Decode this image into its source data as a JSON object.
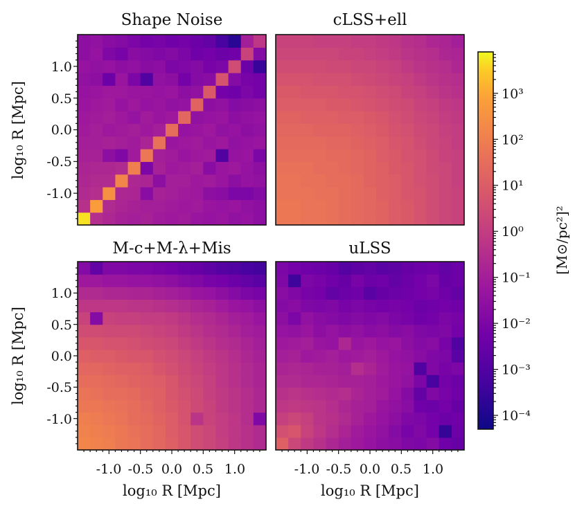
{
  "chart_data": {
    "type": "heatmap",
    "grid_size": 15,
    "axis_range": [
      -1.5,
      1.5
    ],
    "color_scale": {
      "label": "[M⊙/pc²]²",
      "log10_range": [
        -4.3,
        3.9
      ],
      "colormap": "plasma",
      "tick_labels": [
        "10⁻⁴",
        "10⁻³",
        "10⁻²",
        "10⁻¹",
        "10⁰",
        "10¹",
        "10²",
        "10³"
      ],
      "tick_log_values": [
        -4,
        -3,
        -2,
        -1,
        0,
        1,
        2,
        3
      ]
    },
    "x_tick_labels": [
      "-1.0",
      "-0.5",
      "0.0",
      "0.5",
      "1.0"
    ],
    "x_tick_values": [
      -1.0,
      -0.5,
      0.0,
      0.5,
      1.0
    ],
    "y_tick_labels": [
      "-1.0",
      "-0.5",
      "0.0",
      "0.5",
      "1.0"
    ],
    "y_tick_values": [
      -1.0,
      -0.5,
      0.0,
      0.5,
      1.0
    ],
    "xlabel": "log₁₀ R [Mpc]",
    "ylabel": "log₁₀ R [Mpc]",
    "panels": [
      {
        "title": "Shape Noise",
        "log10_values": [
          [
            3.7,
            -0.5,
            -0.7,
            -0.9,
            -1.0,
            -0.9,
            -1.1,
            -1.2,
            -1.1,
            -1.3,
            -1.4,
            -1.3,
            -1.5,
            -1.4,
            -1.6
          ],
          [
            -0.4,
            2.8,
            -0.6,
            -0.8,
            -0.9,
            -1.0,
            -1.0,
            -1.1,
            -1.2,
            -1.1,
            -1.3,
            -1.4,
            -1.3,
            -1.5,
            -1.6
          ],
          [
            -0.6,
            -0.5,
            2.5,
            -0.7,
            -0.8,
            -1.7,
            -0.9,
            -1.0,
            -1.1,
            -1.2,
            -1.6,
            -1.7,
            -2.0,
            -2.0,
            -1.8
          ],
          [
            -0.7,
            -0.6,
            -0.6,
            2.2,
            -0.7,
            -0.8,
            -1.6,
            -1.0,
            -1.0,
            -1.2,
            -1.1,
            -1.3,
            -1.6,
            -1.4,
            -1.5
          ],
          [
            -0.8,
            -0.7,
            -0.7,
            -0.6,
            2.0,
            -2.0,
            -0.9,
            -1.2,
            -1.1,
            -1.0,
            -1.7,
            -1.3,
            -1.2,
            -1.4,
            -1.6
          ],
          [
            -0.9,
            -0.9,
            -1.6,
            -1.9,
            -1.1,
            1.8,
            -1.0,
            -1.1,
            -1.3,
            -1.2,
            -1.1,
            -3.0,
            -1.4,
            -1.3,
            -2.0
          ],
          [
            -1.0,
            -1.0,
            -0.9,
            -1.0,
            -1.1,
            -0.8,
            1.6,
            -1.3,
            -1.2,
            -1.1,
            -1.3,
            -1.2,
            -1.5,
            -1.4,
            -1.3
          ],
          [
            -1.1,
            -1.0,
            -1.2,
            -1.1,
            -1.0,
            -1.2,
            -1.0,
            1.5,
            -1.4,
            -1.3,
            -1.2,
            -1.5,
            -1.4,
            -1.6,
            -1.5
          ],
          [
            -1.2,
            -1.1,
            -1.0,
            -1.2,
            -1.4,
            -1.1,
            -1.3,
            -1.2,
            1.3,
            -1.5,
            -1.4,
            -1.3,
            -1.6,
            -1.5,
            -1.4
          ],
          [
            -1.3,
            -1.2,
            -1.1,
            -1.4,
            -1.2,
            -1.4,
            -1.3,
            -1.5,
            -1.4,
            1.2,
            -1.6,
            -1.5,
            -1.8,
            -1.7,
            -1.6
          ],
          [
            -1.4,
            -1.3,
            -1.2,
            -1.2,
            -1.3,
            -1.3,
            -1.4,
            -1.3,
            -1.6,
            -1.5,
            0.9,
            -2.2,
            -2.3,
            -2.0,
            -2.2
          ],
          [
            -1.5,
            -1.6,
            -2.4,
            -1.3,
            -2.0,
            -3.0,
            -1.5,
            -1.6,
            -2.2,
            -1.8,
            -1.7,
            0.7,
            -1.8,
            -2.1,
            -2.2
          ],
          [
            -1.4,
            -1.5,
            -1.4,
            -1.6,
            -1.5,
            -1.7,
            -1.6,
            -2.0,
            -1.9,
            -1.8,
            -2.1,
            -2.0,
            0.5,
            -2.4,
            -3.5
          ],
          [
            -1.6,
            -1.4,
            -1.9,
            -2.1,
            -1.7,
            -1.8,
            -1.9,
            -1.8,
            -2.0,
            -2.3,
            -2.2,
            -2.4,
            -2.3,
            0.2,
            -1.8
          ],
          [
            -1.6,
            -1.5,
            -1.7,
            -1.8,
            -2.0,
            -2.2,
            -2.1,
            -2.3,
            -2.2,
            -2.4,
            -2.6,
            -3.2,
            -3.8,
            -1.0,
            -0.2
          ]
        ]
      },
      {
        "title": "cLSS+ell",
        "log10_values": [
          [
            1.8,
            1.8,
            1.7,
            1.7,
            1.6,
            1.5,
            1.4,
            1.3,
            1.2,
            1.0,
            0.9,
            0.7,
            0.5,
            0.3,
            0.2
          ],
          [
            1.8,
            1.8,
            1.7,
            1.7,
            1.6,
            1.5,
            1.4,
            1.3,
            1.2,
            1.0,
            0.9,
            0.7,
            0.5,
            0.3,
            0.2
          ],
          [
            1.7,
            1.7,
            1.7,
            1.6,
            1.6,
            1.5,
            1.4,
            1.3,
            1.1,
            1.0,
            0.8,
            0.7,
            0.5,
            0.3,
            0.2
          ],
          [
            1.7,
            1.7,
            1.6,
            1.6,
            1.5,
            1.5,
            1.4,
            1.2,
            1.1,
            1.0,
            0.8,
            0.6,
            0.5,
            0.3,
            0.1
          ],
          [
            1.6,
            1.6,
            1.6,
            1.5,
            1.5,
            1.4,
            1.3,
            1.2,
            1.1,
            0.9,
            0.8,
            0.6,
            0.4,
            0.3,
            0.1
          ],
          [
            1.5,
            1.5,
            1.5,
            1.5,
            1.4,
            1.4,
            1.3,
            1.2,
            1.0,
            0.9,
            0.7,
            0.6,
            0.4,
            0.2,
            0.1
          ],
          [
            1.4,
            1.4,
            1.4,
            1.4,
            1.3,
            1.3,
            1.2,
            1.1,
            1.0,
            0.8,
            0.7,
            0.5,
            0.3,
            0.2,
            0.0
          ],
          [
            1.3,
            1.3,
            1.3,
            1.2,
            1.2,
            1.2,
            1.1,
            1.0,
            0.9,
            0.7,
            0.6,
            0.4,
            0.3,
            0.1,
            0.0
          ],
          [
            1.2,
            1.2,
            1.1,
            1.1,
            1.1,
            1.0,
            1.0,
            0.9,
            0.8,
            0.6,
            0.5,
            0.3,
            0.2,
            0.0,
            -0.1
          ],
          [
            1.0,
            1.0,
            1.0,
            1.0,
            0.9,
            0.9,
            0.8,
            0.7,
            0.6,
            0.5,
            0.4,
            0.2,
            0.1,
            -0.1,
            -0.2
          ],
          [
            0.9,
            0.9,
            0.8,
            0.8,
            0.8,
            0.7,
            0.7,
            0.6,
            0.5,
            0.4,
            0.2,
            0.1,
            -0.1,
            -0.3,
            -0.4
          ],
          [
            0.7,
            0.7,
            0.7,
            0.6,
            0.6,
            0.6,
            0.5,
            0.4,
            0.3,
            0.2,
            0.1,
            -0.1,
            -0.3,
            -0.4,
            -0.5
          ],
          [
            0.5,
            0.5,
            0.5,
            0.5,
            0.4,
            0.4,
            0.3,
            0.3,
            0.2,
            0.1,
            -0.1,
            -0.3,
            -0.4,
            -0.5,
            -0.7
          ],
          [
            0.3,
            0.3,
            0.3,
            0.3,
            0.3,
            0.2,
            0.2,
            0.1,
            0.0,
            -0.1,
            -0.3,
            -0.4,
            -0.5,
            -0.7,
            -0.8
          ],
          [
            0.2,
            0.2,
            0.2,
            0.1,
            0.1,
            0.1,
            0.0,
            0.0,
            -0.1,
            -0.2,
            -0.4,
            -0.5,
            -0.7,
            -0.8,
            -1.0
          ]
        ]
      },
      {
        "title": "M-c+M-λ+Mis",
        "log10_values": [
          [
            2.2,
            2.1,
            2.0,
            1.8,
            1.7,
            1.5,
            1.3,
            1.1,
            0.8,
            0.5,
            0.3,
            0.1,
            -0.2,
            -0.4,
            -0.6
          ],
          [
            2.1,
            2.0,
            1.9,
            1.8,
            1.6,
            1.5,
            1.3,
            1.0,
            0.8,
            0.5,
            0.3,
            0.0,
            -0.2,
            -0.4,
            -0.6
          ],
          [
            2.0,
            1.9,
            1.8,
            1.7,
            1.5,
            1.4,
            1.2,
            1.0,
            0.7,
            -0.3,
            0.2,
            0.0,
            -0.2,
            -0.5,
            -1.9
          ],
          [
            1.8,
            1.8,
            1.7,
            1.6,
            1.5,
            1.3,
            1.1,
            0.9,
            0.7,
            0.4,
            0.2,
            -0.1,
            -0.3,
            -0.5,
            -0.7
          ],
          [
            1.7,
            1.6,
            1.5,
            1.5,
            1.4,
            1.2,
            1.1,
            0.8,
            0.6,
            0.4,
            0.1,
            -0.1,
            -0.3,
            -0.5,
            -0.7
          ],
          [
            1.5,
            1.5,
            1.4,
            1.3,
            1.2,
            1.1,
            1.0,
            0.8,
            0.5,
            0.3,
            0.1,
            -0.2,
            -0.4,
            -0.6,
            -0.8
          ],
          [
            1.3,
            1.3,
            1.2,
            1.1,
            1.1,
            1.0,
            0.8,
            0.6,
            0.4,
            0.2,
            0.0,
            -0.2,
            -0.4,
            -0.6,
            -0.8
          ],
          [
            1.1,
            1.0,
            1.0,
            0.9,
            0.8,
            0.8,
            0.6,
            0.5,
            0.3,
            0.1,
            -0.1,
            -0.3,
            -0.5,
            -0.7,
            -0.9
          ],
          [
            0.8,
            0.8,
            0.7,
            0.7,
            0.6,
            0.5,
            0.4,
            0.3,
            0.1,
            -0.1,
            -0.3,
            -0.5,
            -0.6,
            -0.8,
            -1.0
          ],
          [
            0.5,
            0.5,
            0.4,
            0.4,
            0.4,
            0.3,
            0.2,
            0.1,
            -0.1,
            -0.3,
            -0.5,
            -0.6,
            -0.8,
            -1.0,
            -1.1
          ],
          [
            0.2,
            -1.8,
            0.2,
            0.1,
            0.1,
            0.0,
            0.0,
            -0.1,
            -0.3,
            -0.5,
            -0.6,
            -0.8,
            -1.0,
            -1.1,
            -1.3
          ],
          [
            -0.2,
            -0.2,
            -0.2,
            -0.2,
            -0.3,
            -0.3,
            -0.4,
            -0.5,
            -0.6,
            -0.8,
            -0.9,
            -1.1,
            -1.3,
            -1.4,
            -1.6
          ],
          [
            -0.6,
            -0.6,
            -0.7,
            -0.7,
            -0.8,
            -0.8,
            -0.9,
            -1.0,
            -1.1,
            -1.3,
            -1.4,
            -1.6,
            -1.8,
            -2.0,
            -2.1
          ],
          [
            -1.2,
            -1.2,
            -1.3,
            -1.3,
            -1.4,
            -1.4,
            -1.5,
            -1.6,
            -1.8,
            -1.9,
            -2.1,
            -2.2,
            -2.4,
            -2.6,
            -2.8
          ],
          [
            -1.8,
            -2.6,
            -1.9,
            -1.9,
            -2.0,
            -2.0,
            -2.1,
            -2.2,
            -2.4,
            -2.5,
            -2.7,
            -2.9,
            -3.0,
            -3.2,
            -3.3
          ]
        ]
      },
      {
        "title": "uLSS",
        "log10_values": [
          [
            1.1,
            0.3,
            -0.1,
            -0.4,
            -0.7,
            -1.0,
            -1.2,
            -1.4,
            -1.6,
            -1.7,
            -1.9,
            -2.0,
            -1.8,
            -2.3,
            -2.5
          ],
          [
            0.6,
            0.8,
            0.2,
            -0.2,
            -0.5,
            -0.8,
            -1.1,
            -1.3,
            -1.5,
            -1.8,
            -2.1,
            -1.9,
            -2.2,
            -3.6,
            -2.4
          ],
          [
            0.1,
            0.3,
            0.1,
            -0.3,
            -0.4,
            -0.6,
            -0.9,
            -1.2,
            -1.4,
            -1.6,
            -1.9,
            -2.0,
            -2.2,
            -2.4,
            -2.3
          ],
          [
            -0.2,
            -0.1,
            -0.2,
            -0.3,
            -0.5,
            -0.7,
            -0.9,
            -1.0,
            -1.3,
            -1.5,
            -1.7,
            -2.3,
            -2.4,
            -2.2,
            -2.5
          ],
          [
            -0.4,
            -0.3,
            -0.4,
            -0.5,
            -0.6,
            -0.5,
            -0.8,
            -1.0,
            -1.1,
            -1.4,
            -1.8,
            -2.6,
            -1.9,
            -2.1,
            -2.3
          ],
          [
            -0.6,
            -0.6,
            -0.7,
            -0.7,
            -0.8,
            -0.9,
            -0.9,
            -1.0,
            -1.2,
            -1.3,
            -1.5,
            -2.0,
            -3.2,
            -2.2,
            -2.4
          ],
          [
            -0.8,
            -0.7,
            -0.8,
            -0.9,
            -0.9,
            -1.0,
            -0.5,
            -0.8,
            -1.1,
            -1.3,
            -1.4,
            -3.0,
            -1.9,
            -2.1,
            -2.0
          ],
          [
            -1.0,
            -0.9,
            -1.2,
            -1.1,
            -1.0,
            -1.2,
            -1.1,
            -1.0,
            -1.2,
            -1.4,
            -1.5,
            -1.7,
            -1.9,
            -2.0,
            -2.8
          ],
          [
            -1.2,
            -1.1,
            -1.0,
            -1.3,
            -1.4,
            -0.7,
            -1.3,
            -1.2,
            -1.4,
            -1.3,
            -1.6,
            -1.8,
            -1.7,
            -2.1,
            -3.0
          ],
          [
            -1.4,
            -1.5,
            -1.3,
            -1.6,
            -1.4,
            -1.6,
            -1.5,
            -1.7,
            -1.6,
            -1.8,
            -1.7,
            -1.9,
            -2.0,
            -1.9,
            -2.2
          ],
          [
            -1.6,
            -2.0,
            -1.5,
            -1.7,
            -1.8,
            -1.9,
            -1.8,
            -1.9,
            -1.8,
            -2.0,
            -2.1,
            -2.3,
            -2.2,
            -2.0,
            -2.1
          ],
          [
            -1.8,
            -1.7,
            -1.9,
            -2.0,
            -1.9,
            -2.1,
            -2.0,
            -2.1,
            -2.2,
            -2.1,
            -2.2,
            -2.4,
            -2.3,
            -2.2,
            -2.3
          ],
          [
            -1.7,
            -1.9,
            -2.1,
            -2.2,
            -2.6,
            -2.4,
            -2.3,
            -2.8,
            -2.5,
            -2.4,
            -2.3,
            -2.2,
            -2.1,
            -2.3,
            -2.6
          ],
          [
            -1.9,
            -3.4,
            -2.0,
            -2.1,
            -2.3,
            -2.5,
            -2.1,
            -2.4,
            -2.3,
            -2.6,
            -2.4,
            -2.2,
            -2.0,
            -2.5,
            -2.4
          ],
          [
            -2.0,
            -2.2,
            -2.3,
            -2.4,
            -2.5,
            -2.9,
            -2.7,
            -2.6,
            -2.8,
            -2.7,
            -2.5,
            -2.4,
            -2.3,
            -2.6,
            -2.4
          ]
        ]
      }
    ]
  }
}
